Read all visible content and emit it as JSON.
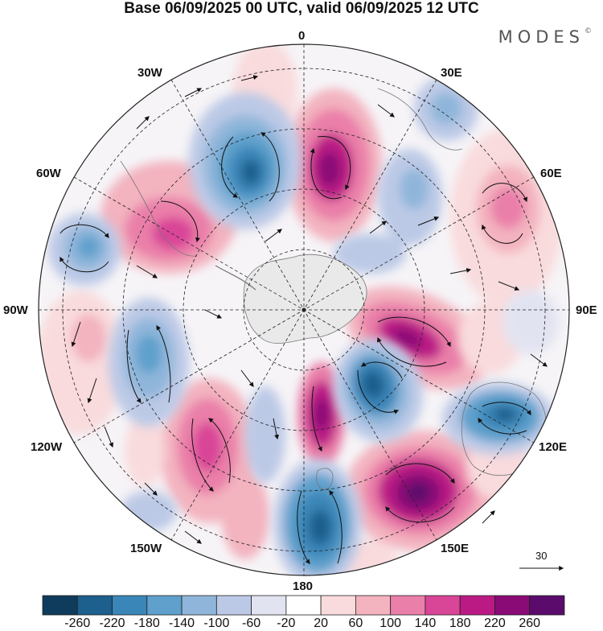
{
  "title": "Base 06/09/2025 00 UTC, valid 06/09/2025 12 UTC",
  "brand": "MODES",
  "brand_mark": "©",
  "longitudes": {
    "top": "0",
    "top_right": "30E",
    "right_upper": "60E",
    "right": "90E",
    "right_lower": "120E",
    "bottom_right": "150E",
    "bottom": "180",
    "bottom_left": "150W",
    "left_lower": "120W",
    "left": "90W",
    "left_upper": "60W",
    "top_left": "30W"
  },
  "reference_vector": "30",
  "colorbar": {
    "ticks": [
      "-260",
      "-220",
      "-180",
      "-140",
      "-100",
      "-60",
      "-20",
      "20",
      "60",
      "100",
      "140",
      "180",
      "220",
      "260"
    ],
    "colors": [
      "#0f3b5c",
      "#1d5f8d",
      "#3a86b8",
      "#5fa0cc",
      "#8fb6da",
      "#bcc9e6",
      "#e2e3f1",
      "#ffffff",
      "#f9dbdd",
      "#f3b3bf",
      "#ea7fa9",
      "#d94597",
      "#bb1a85",
      "#8a0a76",
      "#5a0b6c"
    ]
  },
  "colors": {
    "cyclone": "#2f78aa",
    "anticyclone": "#c21f8a",
    "continent": "#e9e9ea"
  }
}
